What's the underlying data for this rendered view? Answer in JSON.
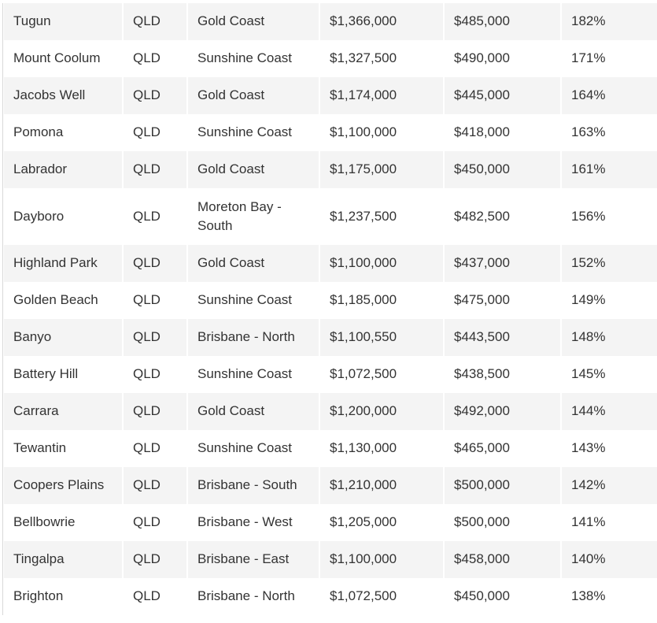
{
  "table": {
    "rows": [
      {
        "suburb": "Tugun",
        "state": "QLD",
        "region": "Gold Coast",
        "house_price": "$1,366,000",
        "unit_price": "$485,000",
        "diff": "182%"
      },
      {
        "suburb": "Mount Coolum",
        "state": "QLD",
        "region": "Sunshine Coast",
        "house_price": "$1,327,500",
        "unit_price": "$490,000",
        "diff": "171%"
      },
      {
        "suburb": "Jacobs Well",
        "state": "QLD",
        "region": "Gold Coast",
        "house_price": "$1,174,000",
        "unit_price": "$445,000",
        "diff": "164%"
      },
      {
        "suburb": "Pomona",
        "state": "QLD",
        "region": "Sunshine Coast",
        "house_price": "$1,100,000",
        "unit_price": "$418,000",
        "diff": "163%"
      },
      {
        "suburb": "Labrador",
        "state": "QLD",
        "region": "Gold Coast",
        "house_price": "$1,175,000",
        "unit_price": "$450,000",
        "diff": "161%"
      },
      {
        "suburb": "Dayboro",
        "state": "QLD",
        "region": "Moreton Bay - South",
        "house_price": "$1,237,500",
        "unit_price": "$482,500",
        "diff": "156%"
      },
      {
        "suburb": "Highland Park",
        "state": "QLD",
        "region": "Gold Coast",
        "house_price": "$1,100,000",
        "unit_price": "$437,000",
        "diff": "152%"
      },
      {
        "suburb": "Golden Beach",
        "state": "QLD",
        "region": "Sunshine Coast",
        "house_price": "$1,185,000",
        "unit_price": "$475,000",
        "diff": "149%"
      },
      {
        "suburb": "Banyo",
        "state": "QLD",
        "region": "Brisbane - North",
        "house_price": "$1,100,550",
        "unit_price": "$443,500",
        "diff": "148%"
      },
      {
        "suburb": "Battery Hill",
        "state": "QLD",
        "region": "Sunshine Coast",
        "house_price": "$1,072,500",
        "unit_price": "$438,500",
        "diff": "145%"
      },
      {
        "suburb": "Carrara",
        "state": "QLD",
        "region": "Gold Coast",
        "house_price": "$1,200,000",
        "unit_price": "$492,000",
        "diff": "144%"
      },
      {
        "suburb": "Tewantin",
        "state": "QLD",
        "region": "Sunshine Coast",
        "house_price": "$1,130,000",
        "unit_price": "$465,000",
        "diff": "143%"
      },
      {
        "suburb": "Coopers Plains",
        "state": "QLD",
        "region": "Brisbane - South",
        "house_price": "$1,210,000",
        "unit_price": "$500,000",
        "diff": "142%"
      },
      {
        "suburb": "Bellbowrie",
        "state": "QLD",
        "region": "Brisbane - West",
        "house_price": "$1,205,000",
        "unit_price": "$500,000",
        "diff": "141%"
      },
      {
        "suburb": "Tingalpa",
        "state": "QLD",
        "region": "Brisbane - East",
        "house_price": "$1,100,000",
        "unit_price": "$458,000",
        "diff": "140%"
      },
      {
        "suburb": "Brighton",
        "state": "QLD",
        "region": "Brisbane - North",
        "house_price": "$1,072,500",
        "unit_price": "$450,000",
        "diff": "138%"
      }
    ]
  }
}
